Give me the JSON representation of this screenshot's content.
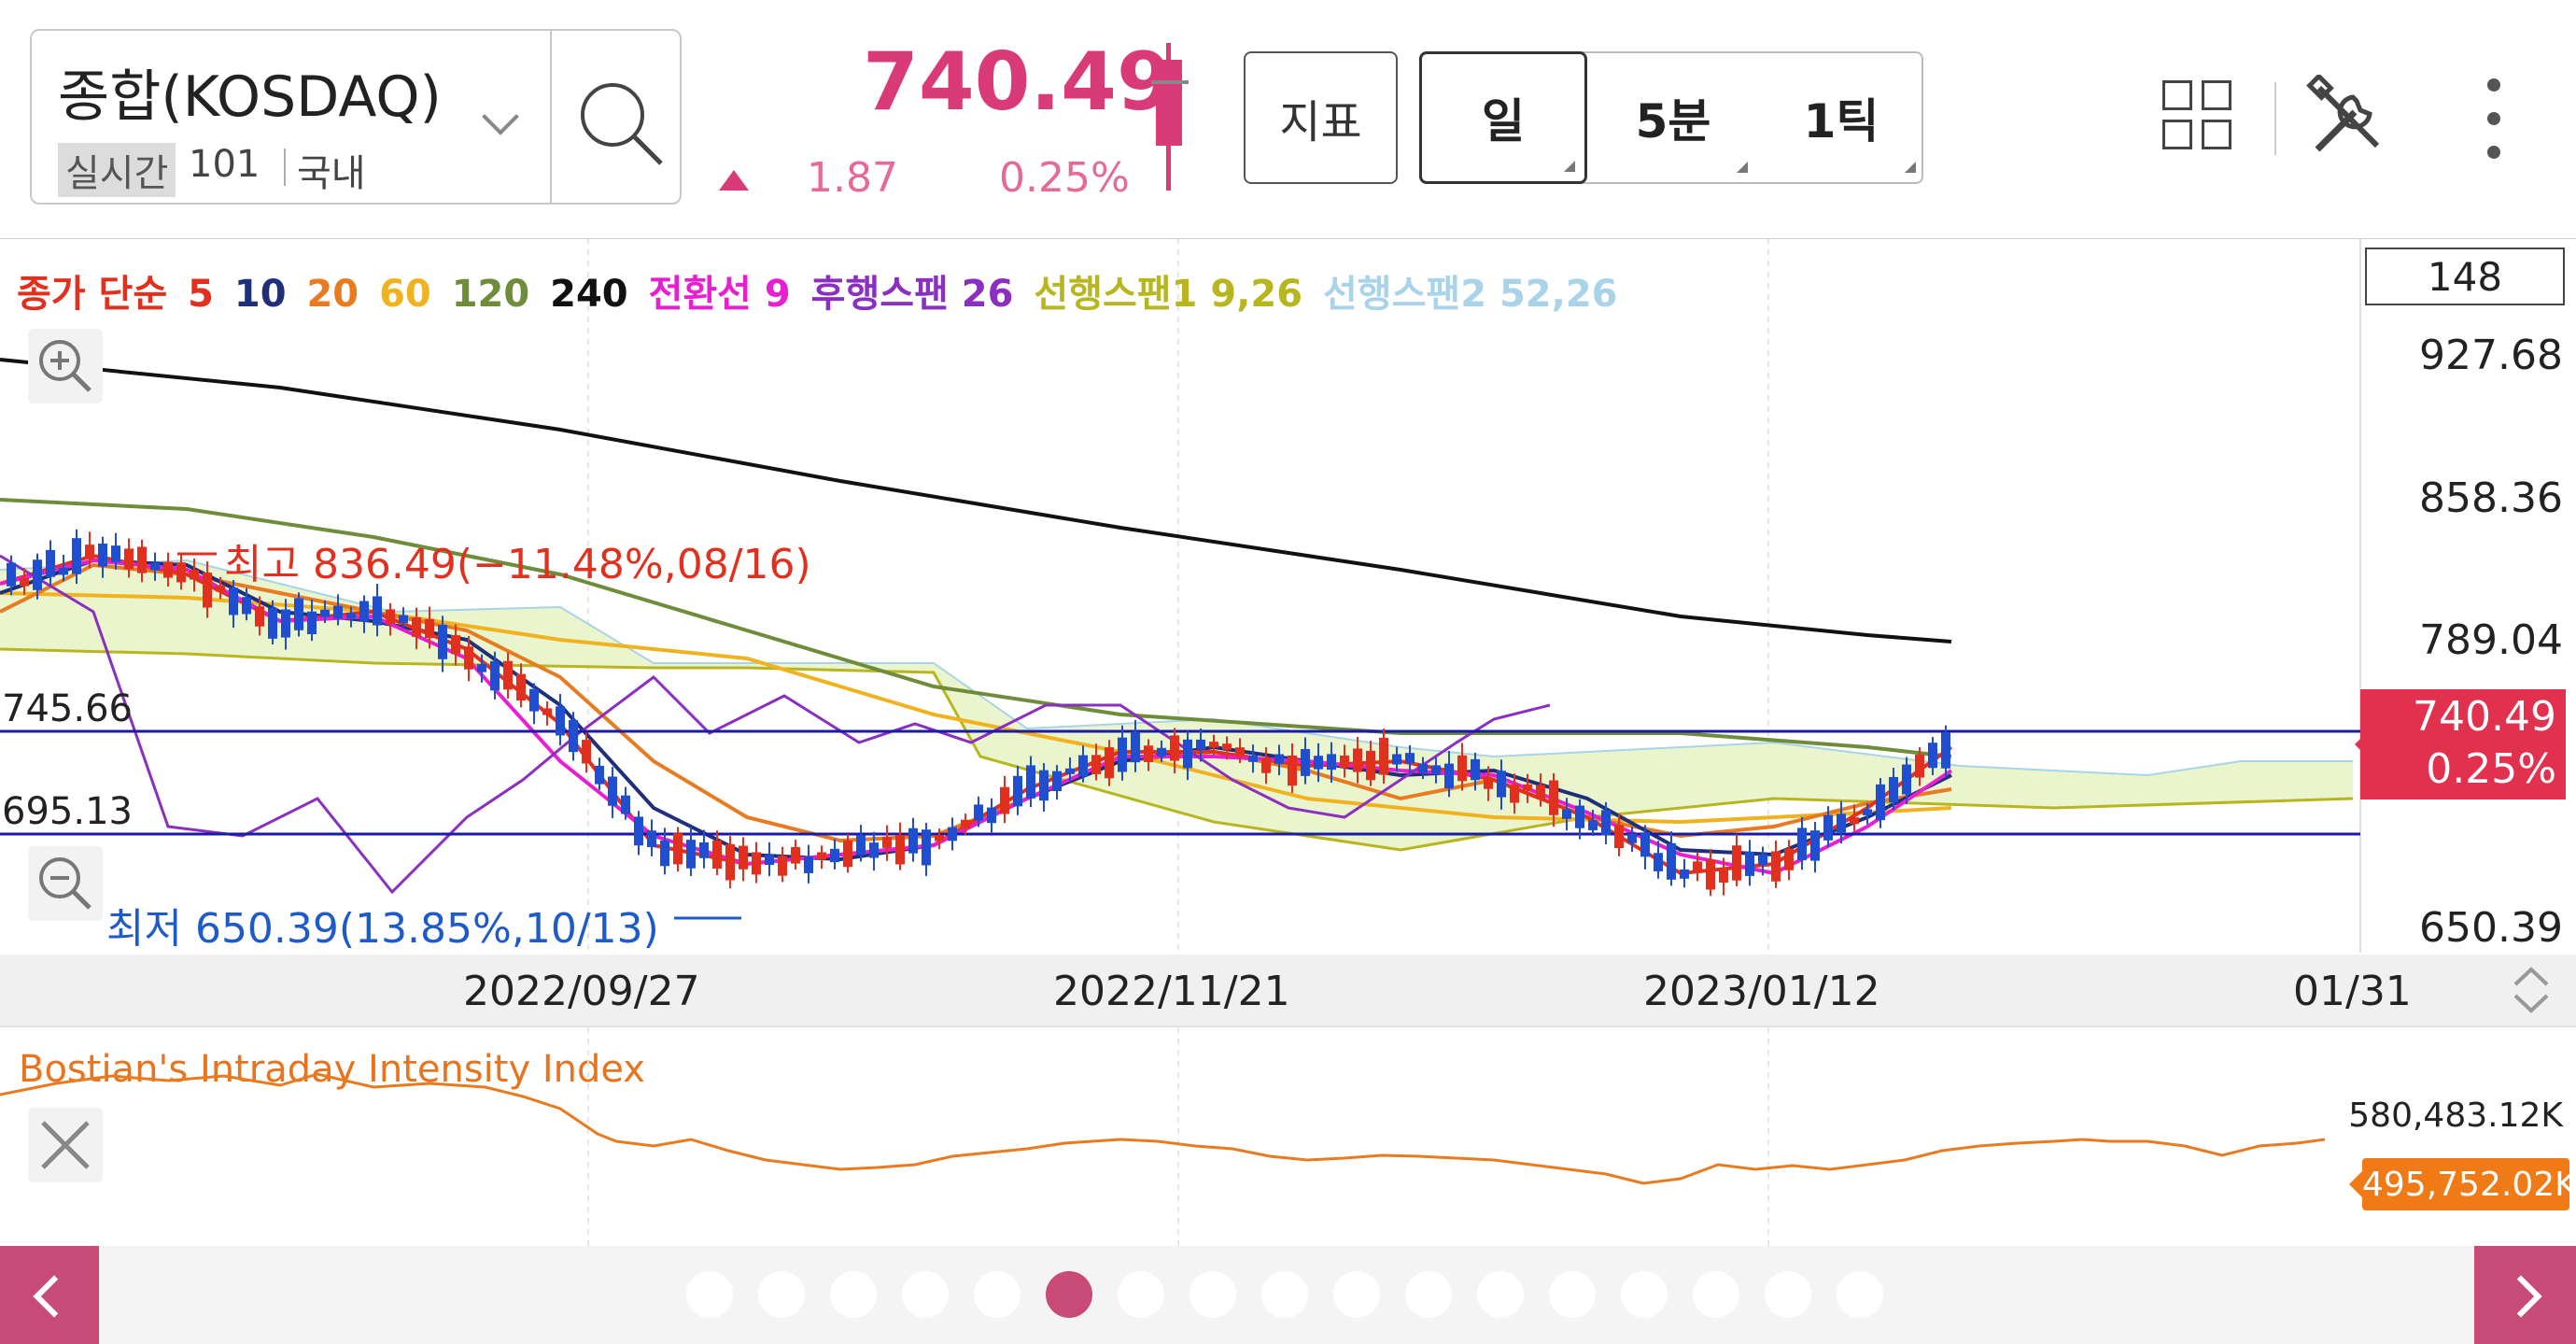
{
  "header": {
    "symbol_name": "종합(KOSDAQ)",
    "realtime_label": "실시간",
    "count": "101",
    "market": "국내",
    "price": "740.49",
    "change_value": "1.87",
    "change_percent": "0.25%",
    "indicator_button": "지표",
    "periods": [
      "일",
      "5분",
      "1틱"
    ],
    "icons": [
      "search-icon",
      "layout-grid-icon",
      "tools-icon",
      "more-vertical-icon"
    ]
  },
  "chart": {
    "legend": [
      {
        "text": "종가 단순",
        "color": "#e2301f"
      },
      {
        "text": "5",
        "color": "#e2301f"
      },
      {
        "text": "10",
        "color": "#1f2f7a"
      },
      {
        "text": "20",
        "color": "#e87a1f"
      },
      {
        "text": "60",
        "color": "#f0b21f"
      },
      {
        "text": "120",
        "color": "#6e8c3a"
      },
      {
        "text": "240",
        "color": "#111111"
      },
      {
        "text": "전환선 9",
        "color": "#e81fd0"
      },
      {
        "text": "후행스팬 26",
        "color": "#8a2fc0"
      },
      {
        "text": "선행스팬1 9,26",
        "color": "#b8b61f"
      },
      {
        "text": "선행스팬2 52,26",
        "color": "#a9d3e8"
      }
    ],
    "counter": "148",
    "y_labels": [
      "927.68",
      "858.36",
      "789.04",
      "650.39"
    ],
    "current_price_tag": "740.49",
    "current_pct_tag": "0.25%",
    "high_label": "최고 836.49(−11.48%,08/16)",
    "low_label": "최저 650.39(13.85%,10/13)",
    "hline_top": "745.66",
    "hline_bottom": "695.13",
    "x_labels": [
      "2022/09/27",
      "2022/11/21",
      "2023/01/12",
      "01/31"
    ]
  },
  "sub_chart": {
    "title": "Bostian's Intraday Intensity Index",
    "y_top": "580,483.12K",
    "current_tag": "495,752.02K"
  },
  "pager": {
    "page_count": 17,
    "active_index": 5
  }
}
